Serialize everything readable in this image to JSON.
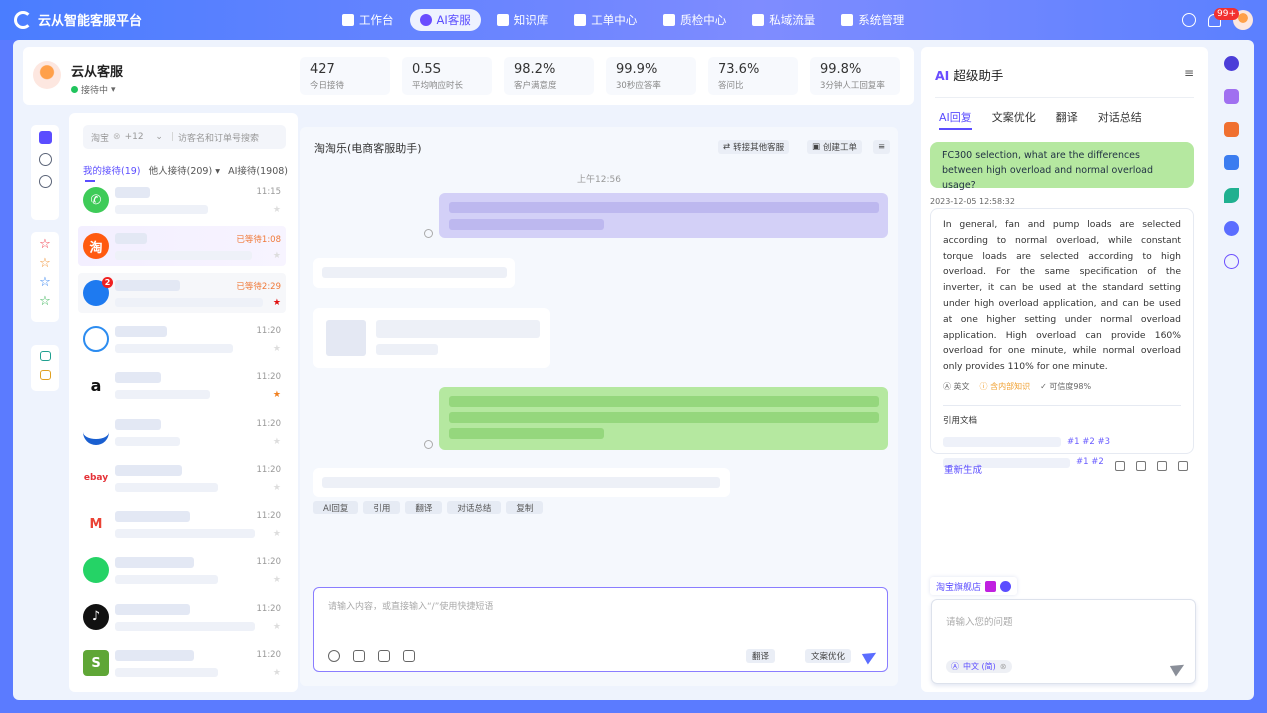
{
  "app": {
    "title": "云从智能客服平台"
  },
  "nav": [
    {
      "label": "工作台",
      "icon": "grid-icon"
    },
    {
      "label": "AI客服",
      "icon": "ai-chat-icon",
      "active": true
    },
    {
      "label": "知识库",
      "icon": "book-icon"
    },
    {
      "label": "工单中心",
      "icon": "calendar-icon"
    },
    {
      "label": "质检中心",
      "icon": "shield-icon"
    },
    {
      "label": "私域流量",
      "icon": "contact-icon"
    },
    {
      "label": "系统管理",
      "icon": "gear-icon"
    }
  ],
  "header": {
    "notification_count": "99+"
  },
  "agent": {
    "name": "云从客服",
    "status": "接待中"
  },
  "stats": [
    {
      "value": "427",
      "label": "今日接待"
    },
    {
      "value": "0.5S",
      "label": "平均响应时长"
    },
    {
      "value": "98.2%",
      "label": "客户满意度"
    },
    {
      "value": "99.9%",
      "label": "30秒应答率"
    },
    {
      "value": "73.6%",
      "label": "答问比"
    },
    {
      "value": "99.8%",
      "label": "3分钟人工回复率"
    }
  ],
  "list": {
    "filter": "淘宝",
    "filter_extra": "+12",
    "search_placeholder": "访客名和订单号搜索",
    "tabs": [
      {
        "label": "我的接待(19)"
      },
      {
        "label": "他人接待(209)"
      },
      {
        "label": "AI接待(1908)"
      }
    ],
    "rows": [
      {
        "platform": "phone",
        "time": "11:15"
      },
      {
        "platform": "taobao",
        "icon_text": "淘",
        "time": "已等待1:08",
        "waiting": true
      },
      {
        "platform": "desktop",
        "badge": "2",
        "time": "已等待2:29",
        "waiting": true,
        "starred": true
      },
      {
        "platform": "chat",
        "time": "11:20"
      },
      {
        "platform": "amazon",
        "icon_text": "a",
        "time": "11:20",
        "starred": true
      },
      {
        "platform": "feishu",
        "time": "11:20"
      },
      {
        "platform": "ebay",
        "icon_text": "ebay",
        "time": "11:20"
      },
      {
        "platform": "gmail",
        "icon_text": "M",
        "time": "11:20"
      },
      {
        "platform": "whatsapp",
        "time": "11:20"
      },
      {
        "platform": "tiktok",
        "icon_text": "♪",
        "time": "11:20"
      },
      {
        "platform": "shopify",
        "icon_text": "S",
        "time": "11:20"
      }
    ]
  },
  "chat": {
    "title": "淘淘乐(电商客服助手)",
    "transfer": "转接其他客服",
    "create_ticket": "创建工单",
    "time_divider": "上午12:56",
    "actions": [
      "AI回复",
      "引用",
      "翻译",
      "对话总结",
      "复制"
    ],
    "input_placeholder": "请输入内容，或直接输入“/”使用快捷短语",
    "translate": "翻译",
    "optimize": "文案优化"
  },
  "assistant": {
    "title_ai": "AI",
    "title": "超级助手",
    "tabs": [
      "AI回复",
      "文案优化",
      "翻译",
      "对话总结"
    ],
    "question": "FC300 selection, what are the differences between high overload and normal overload usage?",
    "timestamp": "2023-12-05 12:58:32",
    "answer": "In general, fan and pump loads are selected according to normal overload, while constant torque loads are selected according to high overload. For the same specification of the inverter, it can be used at the standard setting under high overload application, and can be used at one higher setting under normal overload application. High overload can provide 160% overload for one minute, while normal overload only provides 110% for one minute.",
    "meta": [
      "英文",
      "含内部知识",
      "可信度98%"
    ],
    "ref_title": "引用文档",
    "refs": [
      "#1 #2 #3",
      "#1 #2"
    ],
    "regenerate": "重新生成",
    "shop": "淘宝旗舰店",
    "input_placeholder": "请输入您的问题",
    "lang": "中文 (简)"
  },
  "colors": {
    "accent": "#5b4dff",
    "brand": "#4a7dff",
    "waiting": "#f07a3a",
    "user_bubble": "#b5e8a0",
    "agent_bubble": "#d3d0f7"
  }
}
